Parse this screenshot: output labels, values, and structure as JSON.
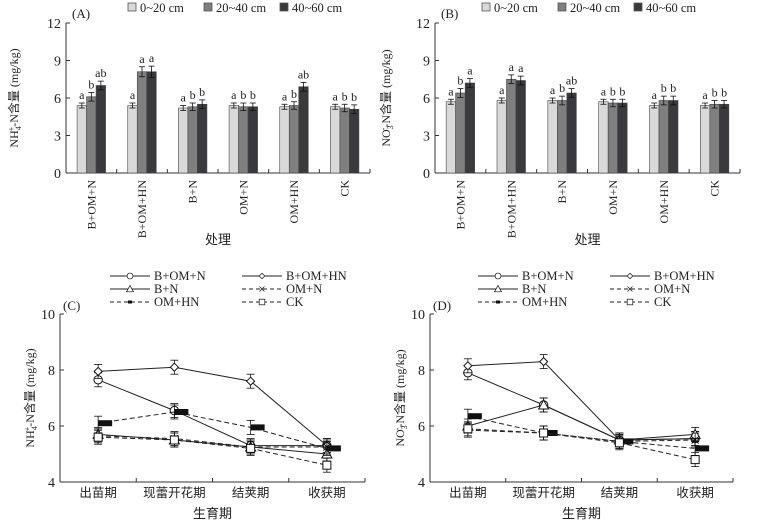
{
  "chart_data": [
    {
      "panel": "(A)",
      "type": "bar",
      "ylabel": "NH4+-N含量 (mg/kg)",
      "ylabel_main": "NH",
      "ylabel_sub": "4",
      "ylabel_sup": "+",
      "ylabel_rest": "-N含量 (mg/kg)",
      "xlabel": "处理",
      "ylim": [
        0,
        12
      ],
      "yticks": [
        0,
        3,
        6,
        9,
        12
      ],
      "categories": [
        "B+OM+N",
        "B+OM+HN",
        "B+N",
        "OM+N",
        "OM+HN",
        "CK"
      ],
      "legend": [
        "0~20 cm",
        "20~40 cm",
        "40~60 cm"
      ],
      "series": [
        {
          "name": "0~20 cm",
          "color": "#d9d9d9",
          "values": [
            5.4,
            5.4,
            5.2,
            5.4,
            5.3,
            5.3
          ],
          "errors": [
            0.2,
            0.2,
            0.2,
            0.2,
            0.2,
            0.2
          ],
          "letters": [
            "a",
            "a",
            "a",
            "a",
            "a",
            "a"
          ]
        },
        {
          "name": "20~40 cm",
          "color": "#7f7f80",
          "values": [
            6.1,
            8.1,
            5.3,
            5.3,
            5.4,
            5.2
          ],
          "errors": [
            0.35,
            0.4,
            0.3,
            0.3,
            0.3,
            0.3
          ],
          "letters": [
            "b",
            "a",
            "b",
            "b",
            "b",
            "b"
          ]
        },
        {
          "name": "40~60 cm",
          "color": "#3a393c",
          "values": [
            7.0,
            8.1,
            5.5,
            5.3,
            6.9,
            5.1
          ],
          "errors": [
            0.35,
            0.45,
            0.35,
            0.3,
            0.35,
            0.35
          ],
          "letters": [
            "ab",
            "a",
            "b",
            "b",
            "ab",
            "b"
          ]
        }
      ]
    },
    {
      "panel": "(B)",
      "type": "bar",
      "ylabel": "NO3--N含量 (mg/kg)",
      "ylabel_main": "NO",
      "ylabel_sub": "3",
      "ylabel_sup": "-",
      "ylabel_rest": "-N含量 (mg/kg)",
      "xlabel": "处理",
      "ylim": [
        0,
        12
      ],
      "yticks": [
        0,
        3,
        6,
        9,
        12
      ],
      "categories": [
        "B+OM+N",
        "B+OM+HN",
        "B+N",
        "OM+N",
        "OM+HN",
        "CK"
      ],
      "legend": [
        "0~20 cm",
        "20~40 cm",
        "40~60 cm"
      ],
      "series": [
        {
          "name": "0~20 cm",
          "color": "#d9d9d9",
          "values": [
            5.7,
            5.8,
            5.8,
            5.7,
            5.4,
            5.4
          ],
          "errors": [
            0.2,
            0.2,
            0.2,
            0.2,
            0.2,
            0.2
          ],
          "letters": [
            "a",
            "a",
            "a",
            "a",
            "a",
            "a"
          ]
        },
        {
          "name": "20~40 cm",
          "color": "#7f7f80",
          "values": [
            6.4,
            7.5,
            5.8,
            5.6,
            5.8,
            5.5
          ],
          "errors": [
            0.35,
            0.35,
            0.35,
            0.3,
            0.35,
            0.3
          ],
          "letters": [
            "b",
            "a",
            "b",
            "b",
            "b",
            "b"
          ]
        },
        {
          "name": "40~60 cm",
          "color": "#3a393c",
          "values": [
            7.2,
            7.4,
            6.4,
            5.6,
            5.8,
            5.5
          ],
          "errors": [
            0.35,
            0.35,
            0.35,
            0.3,
            0.35,
            0.3
          ],
          "letters": [
            "a",
            "a",
            "ab",
            "b",
            "b",
            "b"
          ]
        }
      ]
    },
    {
      "panel": "(C)",
      "type": "line",
      "ylabel": "NH4+-N含量 (mg/kg)",
      "ylabel_main": "NH",
      "ylabel_sub": "4",
      "ylabel_sup": "+",
      "ylabel_rest": "-N含量 (mg/kg)",
      "xlabel": "生育期",
      "ylim": [
        4,
        10
      ],
      "yticks": [
        4,
        6,
        8,
        10
      ],
      "categories": [
        "出苗期",
        "现蕾开花期",
        "结荚期",
        "收获期"
      ],
      "series": [
        {
          "name": "B+OM+N",
          "marker": "circle",
          "dash": false,
          "values": [
            7.65,
            6.55,
            5.3,
            5.3
          ]
        },
        {
          "name": "B+OM+HN",
          "marker": "diamond",
          "dash": false,
          "values": [
            7.95,
            8.1,
            7.6,
            5.3
          ]
        },
        {
          "name": "B+N",
          "marker": "triangle",
          "dash": false,
          "values": [
            5.7,
            5.5,
            5.25,
            5.0
          ]
        },
        {
          "name": "OM+N",
          "marker": "x",
          "dash": true,
          "values": [
            5.65,
            5.55,
            5.25,
            5.25
          ]
        },
        {
          "name": "OM+HN",
          "marker": "square-filled",
          "dash": true,
          "values": [
            6.1,
            6.5,
            5.95,
            5.2
          ]
        },
        {
          "name": "CK",
          "marker": "square",
          "dash": true,
          "values": [
            5.6,
            5.5,
            5.2,
            4.6
          ]
        }
      ]
    },
    {
      "panel": "(D)",
      "type": "line",
      "ylabel": "NO3--N含量 (mg/kg)",
      "ylabel_main": "NO",
      "ylabel_sub": "3",
      "ylabel_sup": "-",
      "ylabel_rest": "-N含量 (mg/kg)",
      "xlabel": "生育期",
      "ylim": [
        4,
        10
      ],
      "yticks": [
        4,
        6,
        8,
        10
      ],
      "categories": [
        "出苗期",
        "现蕾开花期",
        "结荚期",
        "收获期"
      ],
      "series": [
        {
          "name": "B+OM+N",
          "marker": "circle",
          "dash": false,
          "values": [
            7.9,
            6.75,
            5.5,
            5.55
          ]
        },
        {
          "name": "B+OM+HN",
          "marker": "diamond",
          "dash": false,
          "values": [
            8.15,
            8.3,
            5.5,
            5.55
          ]
        },
        {
          "name": "B+N",
          "marker": "triangle",
          "dash": false,
          "values": [
            6.0,
            6.75,
            5.5,
            5.7
          ]
        },
        {
          "name": "OM+N",
          "marker": "x",
          "dash": true,
          "values": [
            5.85,
            5.75,
            5.45,
            5.5
          ]
        },
        {
          "name": "OM+HN",
          "marker": "square-filled",
          "dash": true,
          "values": [
            6.35,
            5.75,
            5.45,
            5.2
          ]
        },
        {
          "name": "CK",
          "marker": "square",
          "dash": true,
          "values": [
            5.9,
            5.75,
            5.4,
            4.8
          ]
        }
      ]
    }
  ]
}
